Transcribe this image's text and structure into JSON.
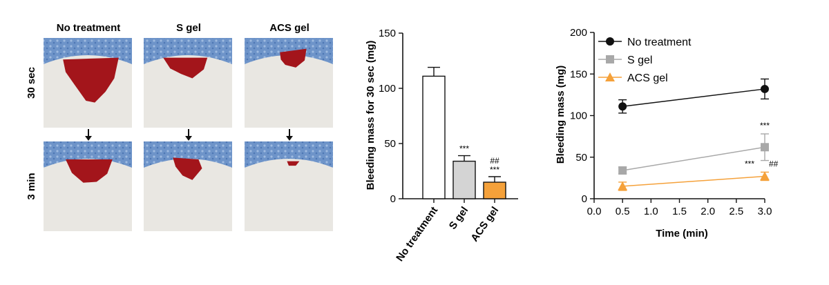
{
  "photo_panel": {
    "column_labels": [
      "No treatment",
      "S gel",
      "ACS gel"
    ],
    "row_labels": [
      "30 sec",
      "3 min"
    ],
    "blood_color": "#a3151b",
    "liner_color": "#6e94c9"
  },
  "chart_data": [
    {
      "type": "bar",
      "categories": [
        "No treatment",
        "S gel",
        "ACS gel"
      ],
      "values": [
        111,
        34,
        15
      ],
      "errors": [
        8,
        5,
        5
      ],
      "colors": [
        "#ffffff",
        "#d4d4d4",
        "#f5a13a"
      ],
      "annotations": [
        [],
        [
          "***"
        ],
        [
          "##",
          "***"
        ]
      ],
      "ylabel": "Bleeding mass for 30 sec (mg)",
      "ylim": [
        0,
        150
      ],
      "yticks": [
        0,
        50,
        100,
        150
      ]
    },
    {
      "type": "line",
      "xlabel": "Time (min)",
      "ylabel": "Bleeding mass (mg)",
      "xlim": [
        0,
        3
      ],
      "ylim": [
        0,
        200
      ],
      "xticks": [
        "0.0",
        "0.5",
        "1.0",
        "1.5",
        "2.0",
        "2.5",
        "3.0"
      ],
      "yticks": [
        0,
        50,
        100,
        150,
        200
      ],
      "legend_position": "top-left",
      "series": [
        {
          "name": "No treatment",
          "color": "#111111",
          "marker": "circle",
          "x": [
            0.5,
            3.0
          ],
          "y": [
            111,
            132
          ],
          "errors": [
            8,
            12
          ],
          "annotations": []
        },
        {
          "name": "S gel",
          "color": "#a8a8a8",
          "marker": "square",
          "x": [
            0.5,
            3.0
          ],
          "y": [
            34,
            62
          ],
          "errors": [
            4,
            16
          ],
          "annotations": [
            "***"
          ]
        },
        {
          "name": "ACS gel",
          "color": "#f5a13a",
          "marker": "triangle",
          "x": [
            0.5,
            3.0
          ],
          "y": [
            15,
            27
          ],
          "errors": [
            5,
            5
          ],
          "annotations": [
            "***",
            "##"
          ]
        }
      ]
    }
  ]
}
